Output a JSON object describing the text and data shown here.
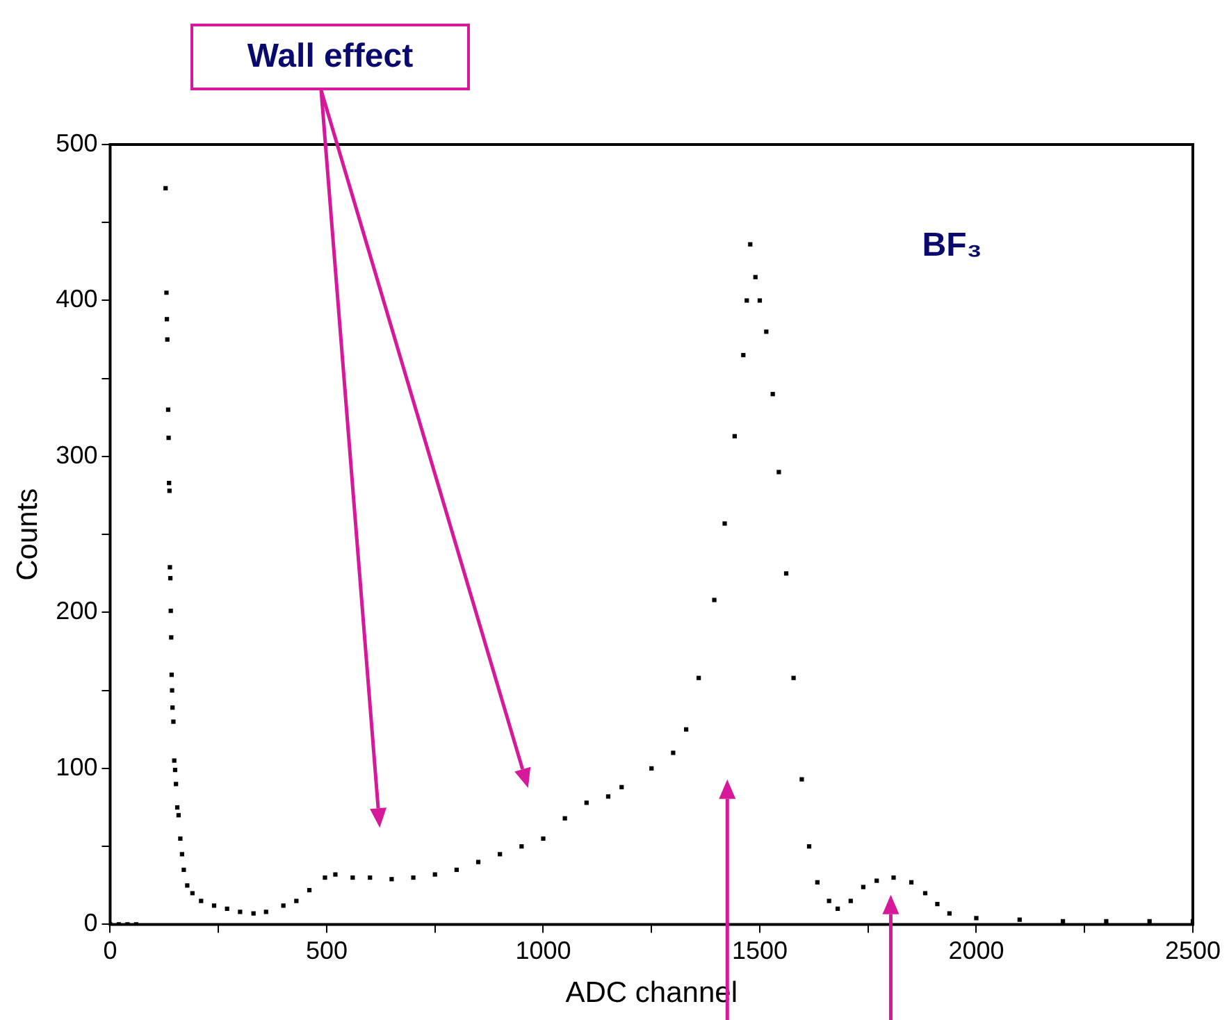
{
  "chart_data": {
    "type": "scatter",
    "xlabel": "ADC channel",
    "ylabel": "Counts",
    "annotations": [
      "Wall effect",
      "BF₃"
    ],
    "marker": "square",
    "grid": false,
    "legend": false,
    "xlim": [
      0,
      2500
    ],
    "xticks": [
      0,
      {
        "value": 250,
        "label": null
      },
      500,
      {
        "value": 750,
        "label": null
      },
      1000,
      {
        "value": 1250,
        "label": null
      },
      1500,
      {
        "value": 1750,
        "label": null
      },
      2000,
      {
        "value": 2250,
        "label": null
      },
      2500
    ],
    "ylim": [
      0,
      500
    ],
    "yticks": [
      0,
      {
        "value": 50,
        "label": null
      },
      100,
      {
        "value": 150,
        "label": null
      },
      200,
      {
        "value": 250,
        "label": null
      },
      300,
      {
        "value": 350,
        "label": null
      },
      400,
      {
        "value": 450,
        "label": null
      },
      500
    ],
    "series": [
      {
        "color": "#000000",
        "x": [
          0,
          20,
          40,
          60,
          128,
          130,
          131,
          132,
          134,
          135,
          136,
          137,
          138,
          139,
          140,
          141,
          142,
          143,
          144,
          146,
          148,
          150,
          152,
          155,
          158,
          162,
          166,
          170,
          178,
          190,
          210,
          240,
          270,
          300,
          331,
          360,
          400,
          430,
          460,
          496,
          520,
          560,
          600,
          650,
          700,
          750,
          800,
          850,
          900,
          950,
          1000,
          1050,
          1100,
          1150,
          1181,
          1250,
          1300,
          1330,
          1359,
          1395,
          1419,
          1442,
          1462,
          1470,
          1478,
          1490,
          1500,
          1515,
          1530,
          1544,
          1561,
          1578,
          1597,
          1614,
          1633,
          1660,
          1680,
          1710,
          1739,
          1770,
          1809,
          1850,
          1882,
          1910,
          1938,
          2000,
          2100,
          2200,
          2300,
          2400,
          2500
        ],
        "values": [
          0,
          0,
          0,
          0,
          472,
          405,
          388,
          375,
          330,
          312,
          283,
          278,
          229,
          222,
          201,
          184,
          160,
          150,
          139,
          130,
          105,
          99,
          90,
          75,
          70,
          55,
          45,
          35,
          25,
          20,
          15,
          12,
          10,
          8,
          7,
          8,
          12,
          15,
          22,
          30,
          32,
          30,
          30,
          29,
          30,
          32,
          35,
          40,
          45,
          50,
          55,
          68,
          78,
          82,
          88,
          100,
          110,
          125,
          158,
          208,
          257,
          313,
          365,
          400,
          436,
          415,
          400,
          380,
          340,
          290,
          225,
          158,
          93,
          50,
          27,
          15,
          10,
          15,
          24,
          28,
          30,
          27,
          20,
          13,
          7,
          4,
          3,
          2,
          2,
          2,
          2
        ]
      }
    ]
  }
}
